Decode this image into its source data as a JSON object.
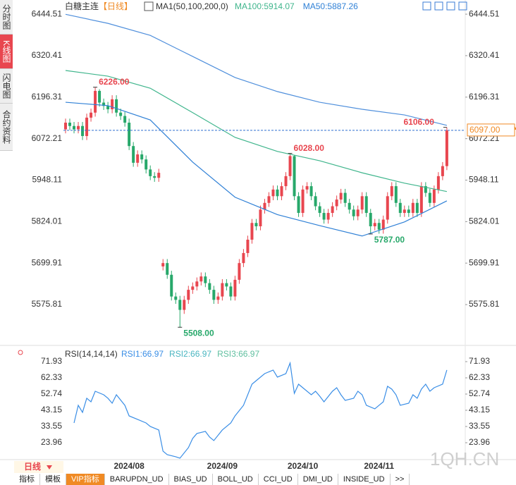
{
  "sidebar_tabs": [
    "分时图",
    "K线图",
    "闪电图",
    "合约资料"
  ],
  "chart_data": {
    "type": "candlestick",
    "legend": {
      "symbol": "白糖主连",
      "period": "【日线】",
      "indicator": "MA1(50,100,200,0)"
    },
    "categories": [
      null,
      null,
      null,
      null,
      null,
      null,
      null,
      null,
      null,
      null,
      null,
      null,
      null,
      null,
      null,
      "2024/08",
      null,
      null,
      null,
      null,
      null,
      null,
      null,
      null,
      null,
      null,
      null,
      null,
      null,
      null,
      null,
      null,
      null,
      null,
      null,
      null,
      null,
      "2024/09",
      null,
      null,
      null,
      null,
      null,
      null,
      null,
      null,
      null,
      null,
      null,
      null,
      null,
      null,
      null,
      null,
      null,
      null,
      "2024/10",
      null,
      null,
      null,
      null,
      null,
      null,
      null,
      null,
      null,
      null,
      null,
      null,
      null,
      null,
      null,
      null,
      null,
      "2024/11",
      null,
      null,
      null,
      null,
      null,
      null,
      null,
      null,
      null,
      null,
      null,
      null,
      null,
      null,
      null,
      null
    ],
    "open": [
      6100,
      6120,
      6110,
      6100,
      6110,
      6080,
      6135,
      6150,
      6215,
      6180,
      6170,
      6160,
      6190,
      6150,
      6140,
      6120,
      6050,
      6000,
      6025,
      6010,
      5980,
      5960,
      5955,
      5690,
      5700,
      5665,
      5600,
      5590,
      5560,
      5590,
      5620,
      5630,
      5645,
      5660,
      5640,
      5620,
      5590,
      5600,
      5640,
      5630,
      5600,
      5650,
      5700,
      5730,
      5770,
      5820,
      5810,
      5860,
      5880,
      5900,
      5920,
      5900,
      5930,
      5960,
      6020,
      5900,
      5850,
      5920,
      5930,
      5900,
      5870,
      5850,
      5830,
      5850,
      5870,
      5890,
      5910,
      5880,
      5860,
      5840,
      5860,
      5900,
      5850,
      5810,
      5820,
      5800,
      5830,
      5900,
      5930,
      5880,
      5850,
      5860,
      5850,
      5880,
      5850,
      5930,
      5910,
      5880,
      5920,
      5960,
      5990
    ],
    "high": [
      6132,
      6132,
      6122,
      6122,
      6122,
      6147,
      6162,
      6226,
      6220,
      6192,
      6182,
      6202,
      6202,
      6162,
      6152,
      6132,
      6062,
      6037,
      6037,
      6022,
      5992,
      5972,
      5982,
      5712,
      5712,
      5677,
      5612,
      5602,
      5602,
      5632,
      5642,
      5657,
      5672,
      5672,
      5652,
      5632,
      5612,
      5652,
      5652,
      5642,
      5662,
      5712,
      5742,
      5782,
      5832,
      5832,
      5872,
      5892,
      5912,
      5932,
      5932,
      5942,
      5972,
      6028,
      6022,
      5912,
      5932,
      5942,
      5942,
      5912,
      5882,
      5862,
      5862,
      5882,
      5902,
      5922,
      5922,
      5892,
      5872,
      5872,
      5912,
      5912,
      5862,
      5832,
      5832,
      5842,
      5912,
      5942,
      5942,
      5892,
      5872,
      5872,
      5892,
      5892,
      5942,
      5942,
      5922,
      5932,
      5972,
      6002,
      6106
    ],
    "low": [
      6088,
      6098,
      6088,
      6088,
      6068,
      6068,
      6123,
      6138,
      6168,
      6158,
      6148,
      6148,
      6138,
      6128,
      6108,
      6038,
      5988,
      5988,
      5998,
      5968,
      5948,
      5943,
      5943,
      5678,
      5653,
      5588,
      5578,
      5508,
      5548,
      5578,
      5608,
      5618,
      5633,
      5628,
      5608,
      5578,
      5578,
      5588,
      5618,
      5588,
      5588,
      5638,
      5688,
      5718,
      5758,
      5798,
      5798,
      5848,
      5868,
      5888,
      5888,
      5888,
      5918,
      5948,
      5888,
      5838,
      5838,
      5908,
      5888,
      5858,
      5838,
      5818,
      5818,
      5838,
      5858,
      5878,
      5868,
      5848,
      5828,
      5828,
      5848,
      5838,
      5787,
      5798,
      5788,
      5788,
      5818,
      5888,
      5868,
      5838,
      5838,
      5838,
      5838,
      5838,
      5838,
      5898,
      5868,
      5868,
      5908,
      5948,
      5978
    ],
    "close": [
      6120,
      6110,
      6100,
      6110,
      6080,
      6135,
      6150,
      6215,
      6180,
      6170,
      6160,
      6190,
      6150,
      6140,
      6120,
      6050,
      6000,
      6025,
      6010,
      5980,
      5960,
      5955,
      5970,
      5700,
      5665,
      5600,
      5590,
      5560,
      5590,
      5620,
      5630,
      5645,
      5660,
      5640,
      5620,
      5590,
      5600,
      5640,
      5630,
      5600,
      5650,
      5700,
      5730,
      5770,
      5820,
      5810,
      5860,
      5880,
      5900,
      5920,
      5900,
      5930,
      5960,
      6020,
      5900,
      5850,
      5920,
      5930,
      5900,
      5870,
      5850,
      5830,
      5850,
      5870,
      5890,
      5910,
      5880,
      5860,
      5840,
      5860,
      5900,
      5850,
      5810,
      5820,
      5800,
      5830,
      5900,
      5930,
      5880,
      5850,
      5860,
      5850,
      5880,
      5850,
      5930,
      5910,
      5880,
      5920,
      5960,
      5990,
      6097
    ],
    "up_color": "#e8464f",
    "down_color": "#27a86a",
    "ma_series": [
      {
        "color": "#4f8fdc",
        "x": [
          0,
          10,
          20,
          30,
          40,
          50,
          60,
          70,
          80,
          90
        ],
        "values": [
          6444,
          6417,
          6381,
          6318,
          6255,
          6213,
          6181,
          6160,
          6143,
          6112
        ]
      },
      {
        "name": "MA100:5914.07",
        "color": "#3fb58c",
        "x": [
          0,
          10,
          20,
          30,
          40,
          50,
          60,
          70,
          80,
          90
        ],
        "values": [
          6276,
          6259,
          6223,
          6150,
          6076,
          6034,
          6006,
          5970,
          5939,
          5914
        ]
      },
      {
        "name": "MA50:5887.26",
        "color": "#2f80d6",
        "x": [
          0,
          10,
          20,
          30,
          40,
          50,
          60,
          70,
          80,
          90
        ],
        "values": [
          6181,
          6171,
          6128,
          6002,
          5897,
          5845,
          5812,
          5781,
          5823,
          5886
        ]
      }
    ],
    "annotations": [
      {
        "index": 7,
        "value": 6226,
        "label": "6226.00",
        "color": "#e8464f"
      },
      {
        "index": 53,
        "value": 6028,
        "label": "6028.00",
        "color": "#e8464f"
      },
      {
        "index": 90,
        "value": 6106,
        "label": "6106.00",
        "color": "#e8464f"
      },
      {
        "index": 27,
        "value": 5508,
        "label": "5508.00",
        "color": "#27a86a"
      },
      {
        "index": 72,
        "value": 5787,
        "label": "5787.00",
        "color": "#27a86a"
      }
    ],
    "last_price": {
      "value": 6097,
      "label": "6097.00"
    },
    "ylim": [
      5460,
      6470
    ],
    "yticks": [
      6444.51,
      6320.41,
      6196.31,
      6072.21,
      5948.11,
      5824.01,
      5699.91,
      5575.81
    ],
    "rsi": {
      "title": "RSI(14,14,14)",
      "ylim": [
        12.7,
        76.1
      ],
      "yticks": [
        71.93,
        62.33,
        52.74,
        43.15,
        33.55,
        23.96
      ],
      "series": [
        {
          "name": "RSI1:66.97",
          "color": "#3a8ee6",
          "x": [
            2,
            3,
            4,
            5,
            6,
            7,
            9,
            10,
            11,
            12,
            14,
            15,
            17,
            19,
            20,
            22,
            23,
            24,
            26,
            27,
            29,
            30,
            31,
            33,
            34,
            35,
            37,
            39,
            40,
            42,
            44,
            45,
            47,
            49,
            50,
            52,
            53,
            54,
            55,
            56,
            58,
            59,
            60,
            61,
            63,
            64,
            65,
            66,
            68,
            69,
            70,
            71,
            73,
            74,
            75,
            76,
            77,
            78,
            79,
            81,
            82,
            83,
            84,
            85,
            86,
            87,
            89,
            90
          ],
          "values": [
            35.65,
            46.08,
            41.91,
            50.25,
            48.16,
            54.42,
            52.33,
            50.25,
            47.33,
            52.33,
            46.08,
            39.82,
            37.74,
            35.65,
            33.57,
            31.48,
            18.97,
            16.89,
            15.64,
            14.8,
            21.06,
            26.48,
            29.4,
            30.65,
            27.31,
            25.23,
            31.48,
            35.65,
            39.82,
            46.08,
            58.59,
            60.67,
            64.84,
            66.93,
            62.76,
            64.84,
            71.1,
            53.16,
            58.59,
            56.5,
            52.33,
            54.42,
            51.5,
            48.16,
            54.42,
            56.5,
            52.33,
            48.99,
            50.25,
            54.42,
            52.33,
            46.08,
            44.0,
            46.08,
            48.16,
            57.34,
            55.67,
            52.33,
            46.08,
            47.33,
            52.33,
            50.25,
            55.67,
            58.59,
            54.42,
            56.5,
            58.59,
            66.97
          ]
        },
        {
          "name": "RSI2:66.97",
          "color": "#49b5c0"
        },
        {
          "name": "RSI3:66.97",
          "color": "#5fbf9f"
        }
      ]
    }
  },
  "footer": {
    "period": "日线",
    "tabs": [
      "指标",
      "模板",
      "VIP指标",
      "BARUPDN_UD",
      "BIAS_UD",
      "BOLL_UD",
      "CCI_UD",
      "DMI_UD",
      "INSIDE_UD",
      ">>"
    ]
  },
  "watermark": "1QH.CN"
}
